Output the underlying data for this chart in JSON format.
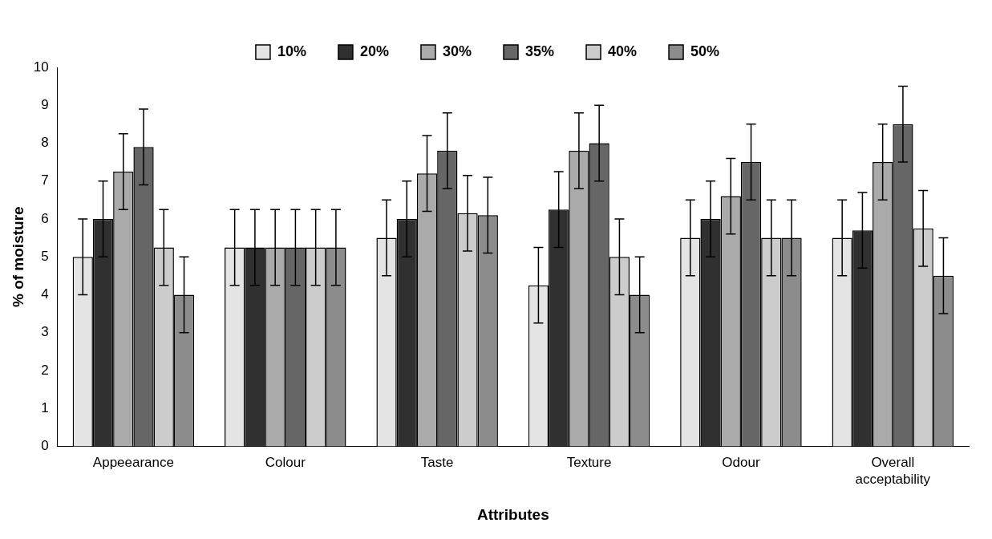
{
  "chart_data": {
    "type": "bar",
    "xlabel": "Attributes",
    "ylabel": "% of moisture",
    "categories": [
      "Appeearance",
      "Colour",
      "Taste",
      "Texture",
      "Odour",
      "Overall acceptability"
    ],
    "series": [
      {
        "name": "10%",
        "color": "#e4e4e4",
        "values": [
          5.0,
          5.25,
          5.5,
          4.25,
          5.5,
          5.5
        ],
        "errors": [
          1,
          1,
          1,
          1,
          1,
          1
        ]
      },
      {
        "name": "20%",
        "color": "#303030",
        "values": [
          6.0,
          5.25,
          6.0,
          6.25,
          6.0,
          5.7
        ],
        "errors": [
          1,
          1,
          1,
          1,
          1,
          1
        ]
      },
      {
        "name": "30%",
        "color": "#aaaaaa",
        "values": [
          7.25,
          5.25,
          7.2,
          7.8,
          6.6,
          7.5
        ],
        "errors": [
          1,
          1,
          1,
          1,
          1,
          1
        ]
      },
      {
        "name": "35%",
        "color": "#666666",
        "values": [
          7.9,
          5.25,
          7.8,
          8.0,
          7.5,
          8.5
        ],
        "errors": [
          1,
          1,
          1,
          1,
          1,
          1
        ]
      },
      {
        "name": "40%",
        "color": "#cccccc",
        "values": [
          5.25,
          5.25,
          6.15,
          5.0,
          5.5,
          5.75
        ],
        "errors": [
          1,
          1,
          1,
          1,
          1,
          1
        ]
      },
      {
        "name": "50%",
        "color": "#8c8c8c",
        "values": [
          4.0,
          5.25,
          6.1,
          4.0,
          5.5,
          4.5
        ],
        "errors": [
          1,
          1,
          1,
          1,
          1,
          1
        ]
      }
    ],
    "ylim": [
      0,
      10
    ],
    "yticks": [
      0,
      1,
      2,
      3,
      4,
      5,
      6,
      7,
      8,
      9,
      10
    ],
    "grid": false,
    "legend": "top"
  }
}
